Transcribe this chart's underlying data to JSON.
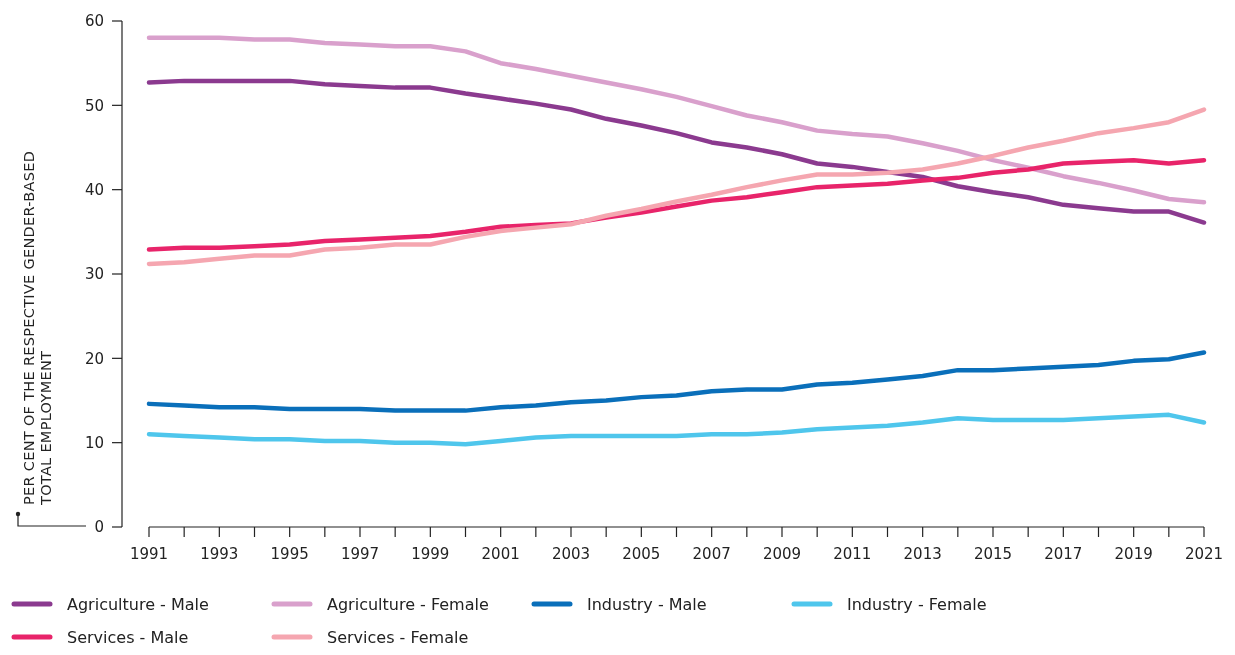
{
  "chart_data": {
    "type": "line",
    "ylabel": "PER CENT OF THE RESPECTIVE GENDER-BASED TOTAL EMPLOYMENT",
    "x": [
      1991,
      1992,
      1993,
      1994,
      1995,
      1996,
      1997,
      1998,
      1999,
      2000,
      2001,
      2002,
      2003,
      2004,
      2005,
      2006,
      2007,
      2008,
      2009,
      2010,
      2011,
      2012,
      2013,
      2014,
      2015,
      2016,
      2017,
      2018,
      2019,
      2020,
      2021
    ],
    "xlim": [
      1991,
      2021
    ],
    "xticks": [
      1991,
      {
        "value": 1992,
        "label": null
      },
      1993,
      {
        "value": 1994,
        "label": null
      },
      1995,
      {
        "value": 1996,
        "label": null
      },
      1997,
      {
        "value": 1998,
        "label": null
      },
      1999,
      {
        "value": 2000,
        "label": null
      },
      2001,
      {
        "value": 2002,
        "label": null
      },
      2003,
      {
        "value": 2004,
        "label": null
      },
      2005,
      {
        "value": 2006,
        "label": null
      },
      2007,
      {
        "value": 2008,
        "label": null
      },
      2009,
      {
        "value": 2010,
        "label": null
      },
      2011,
      {
        "value": 2012,
        "label": null
      },
      2013,
      {
        "value": 2014,
        "label": null
      },
      2015,
      {
        "value": 2016,
        "label": null
      },
      2017,
      {
        "value": 2018,
        "label": null
      },
      2019,
      {
        "value": 2020,
        "label": null
      },
      2021
    ],
    "ylim": [
      0,
      60
    ],
    "yticks": [
      0,
      10,
      20,
      30,
      40,
      50,
      60
    ],
    "grid": false,
    "legend": "bottom",
    "marker": "none",
    "line_style": "solid",
    "series": [
      {
        "name": "Agriculture - Male",
        "color": "#8b3a8f",
        "values": [
          52.7,
          52.9,
          52.9,
          52.9,
          52.9,
          52.5,
          52.3,
          52.1,
          52.1,
          51.4,
          50.8,
          50.2,
          49.5,
          48.4,
          47.6,
          46.7,
          45.6,
          45.0,
          44.2,
          43.1,
          42.7,
          42.1,
          41.5,
          40.4,
          39.7,
          39.1,
          38.2,
          37.8,
          37.4,
          37.4,
          36.1
        ]
      },
      {
        "name": "Agriculture - Female",
        "color": "#d9a0cc",
        "values": [
          58.0,
          58.0,
          58.0,
          57.8,
          57.8,
          57.4,
          57.2,
          57.0,
          57.0,
          56.4,
          55.0,
          54.3,
          53.5,
          52.7,
          51.9,
          51.0,
          49.9,
          48.8,
          48.0,
          47.0,
          46.6,
          46.3,
          45.5,
          44.6,
          43.5,
          42.6,
          41.6,
          40.8,
          39.9,
          38.9,
          38.5
        ]
      },
      {
        "name": "Industry - Male",
        "color": "#0a6fba",
        "values": [
          14.6,
          14.4,
          14.2,
          14.2,
          14.0,
          14.0,
          14.0,
          13.8,
          13.8,
          13.8,
          14.2,
          14.4,
          14.8,
          15.0,
          15.4,
          15.6,
          16.1,
          16.3,
          16.3,
          16.9,
          17.1,
          17.5,
          17.9,
          18.6,
          18.6,
          18.8,
          19.0,
          19.2,
          19.7,
          19.9,
          20.7
        ]
      },
      {
        "name": "Industry - Female",
        "color": "#4fc6ec",
        "values": [
          11.0,
          10.8,
          10.6,
          10.4,
          10.4,
          10.2,
          10.2,
          10.0,
          10.0,
          9.8,
          10.2,
          10.6,
          10.8,
          10.8,
          10.8,
          10.8,
          11.0,
          11.0,
          11.2,
          11.6,
          11.8,
          12.0,
          12.4,
          12.9,
          12.7,
          12.7,
          12.7,
          12.9,
          13.1,
          13.3,
          12.4
        ]
      },
      {
        "name": "Services - Male",
        "color": "#e8246a",
        "values": [
          32.9,
          33.1,
          33.1,
          33.3,
          33.5,
          33.9,
          34.1,
          34.3,
          34.5,
          35.0,
          35.6,
          35.8,
          36.0,
          36.7,
          37.3,
          38.0,
          38.7,
          39.1,
          39.7,
          40.3,
          40.5,
          40.7,
          41.1,
          41.4,
          42.0,
          42.4,
          43.1,
          43.3,
          43.5,
          43.1,
          43.5
        ]
      },
      {
        "name": "Services - Female",
        "color": "#f5a6b0",
        "values": [
          31.2,
          31.4,
          31.8,
          32.2,
          32.2,
          32.9,
          33.1,
          33.5,
          33.5,
          34.4,
          35.1,
          35.5,
          35.9,
          36.9,
          37.7,
          38.6,
          39.4,
          40.3,
          41.1,
          41.8,
          41.8,
          42.0,
          42.4,
          43.1,
          44.0,
          45.0,
          45.8,
          46.7,
          47.3,
          48.0,
          49.5
        ]
      }
    ]
  }
}
